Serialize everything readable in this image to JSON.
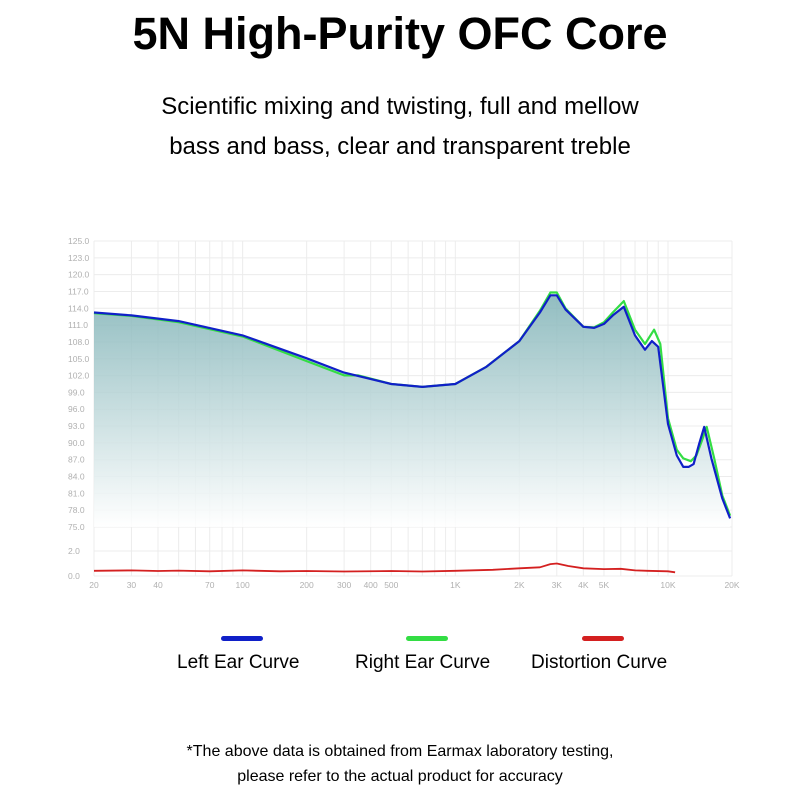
{
  "header": {
    "title": "5N High-Purity OFC Core",
    "subtitle_lines": [
      "Scientific mixing and twisting, full and mellow",
      "bass and bass, clear and transparent treble"
    ]
  },
  "footnote": {
    "lines": [
      "*The above data is obtained from Earmax laboratory testing,",
      "please refer to the actual product for accuracy"
    ]
  },
  "colors": {
    "left": "#1020c8",
    "right": "#33dd44",
    "distortion": "#d42020",
    "fill_top": "#7fb2b6",
    "fill_bottom": "#ffffff",
    "grid": "#ececec",
    "tick_text": "#b0b0b0"
  },
  "chart_data": {
    "type": "line",
    "x_scale": "log",
    "xlim": [
      20,
      20000
    ],
    "ylim_main": [
      75.0,
      125.0
    ],
    "ylim_distortion": [
      0.0,
      2.0
    ],
    "y_ticks_main": [
      "125.0",
      "123.0",
      "120.0",
      "117.0",
      "114.0",
      "111.0",
      "108.0",
      "105.0",
      "102.0",
      "99.0",
      "96.0",
      "93.0",
      "90.0",
      "87.0",
      "84.0",
      "81.0",
      "78.0",
      "75.0"
    ],
    "y_ticks_distortion": [
      "2.0",
      "0.0"
    ],
    "x_ticks": [
      {
        "v": 20,
        "label": "20"
      },
      {
        "v": 30,
        "label": "30"
      },
      {
        "v": 40,
        "label": "40"
      },
      {
        "v": 70,
        "label": "70"
      },
      {
        "v": 100,
        "label": "100"
      },
      {
        "v": 200,
        "label": "200"
      },
      {
        "v": 300,
        "label": "300"
      },
      {
        "v": 400,
        "label": "400"
      },
      {
        "v": 500,
        "label": "500"
      },
      {
        "v": 1000,
        "label": "1K"
      },
      {
        "v": 2000,
        "label": "2K"
      },
      {
        "v": 3000,
        "label": "3K"
      },
      {
        "v": 4000,
        "label": "4K"
      },
      {
        "v": 5000,
        "label": "5K"
      },
      {
        "v": 10000,
        "label": "10K"
      },
      {
        "v": 20000,
        "label": "20K"
      }
    ],
    "series": [
      {
        "name": "Left Ear Curve",
        "points": [
          [
            20,
            112.5
          ],
          [
            30,
            112.0
          ],
          [
            50,
            111.0
          ],
          [
            100,
            108.5
          ],
          [
            200,
            104.5
          ],
          [
            300,
            102.0
          ],
          [
            500,
            100.0
          ],
          [
            700,
            99.5
          ],
          [
            1000,
            100.0
          ],
          [
            1400,
            103.0
          ],
          [
            2000,
            107.5
          ],
          [
            2500,
            112.5
          ],
          [
            2800,
            115.5
          ],
          [
            3000,
            115.5
          ],
          [
            3300,
            113.0
          ],
          [
            4000,
            110.0
          ],
          [
            4500,
            109.8
          ],
          [
            5000,
            110.5
          ],
          [
            5500,
            112.0
          ],
          [
            6200,
            113.5
          ],
          [
            7000,
            108.5
          ],
          [
            7800,
            106.0
          ],
          [
            8400,
            107.5
          ],
          [
            9000,
            106.5
          ],
          [
            10000,
            93.0
          ],
          [
            11000,
            87.5
          ],
          [
            11800,
            85.5
          ],
          [
            12500,
            85.5
          ],
          [
            13200,
            86.0
          ],
          [
            14000,
            89.5
          ],
          [
            14800,
            92.5
          ],
          [
            16000,
            87.0
          ],
          [
            18000,
            80.0
          ],
          [
            19600,
            76.5
          ]
        ]
      },
      {
        "name": "Right Ear Curve",
        "points": [
          [
            20,
            112.4
          ],
          [
            30,
            111.9
          ],
          [
            50,
            110.8
          ],
          [
            100,
            108.3
          ],
          [
            200,
            104.0
          ],
          [
            300,
            101.5
          ],
          [
            350,
            101.5
          ],
          [
            500,
            100.0
          ],
          [
            700,
            99.5
          ],
          [
            1000,
            100.0
          ],
          [
            1400,
            103.0
          ],
          [
            2000,
            107.5
          ],
          [
            2500,
            112.8
          ],
          [
            2800,
            116.0
          ],
          [
            3000,
            116.0
          ],
          [
            3300,
            113.2
          ],
          [
            4000,
            110.0
          ],
          [
            4500,
            109.9
          ],
          [
            5000,
            110.8
          ],
          [
            5500,
            112.5
          ],
          [
            6200,
            114.5
          ],
          [
            7000,
            109.5
          ],
          [
            7800,
            107.0
          ],
          [
            8600,
            109.5
          ],
          [
            9200,
            107.0
          ],
          [
            10000,
            94.0
          ],
          [
            11000,
            88.5
          ],
          [
            11800,
            87.0
          ],
          [
            12800,
            86.5
          ],
          [
            13600,
            87.5
          ],
          [
            14400,
            90.0
          ],
          [
            15200,
            92.5
          ],
          [
            16500,
            87.0
          ],
          [
            18000,
            80.5
          ],
          [
            19600,
            77.0
          ]
        ]
      },
      {
        "name": "Distortion Curve",
        "points": [
          [
            20,
            0.42
          ],
          [
            30,
            0.45
          ],
          [
            40,
            0.4
          ],
          [
            50,
            0.43
          ],
          [
            70,
            0.38
          ],
          [
            100,
            0.45
          ],
          [
            150,
            0.38
          ],
          [
            200,
            0.4
          ],
          [
            300,
            0.36
          ],
          [
            500,
            0.4
          ],
          [
            700,
            0.36
          ],
          [
            1000,
            0.42
          ],
          [
            1500,
            0.5
          ],
          [
            2000,
            0.62
          ],
          [
            2500,
            0.7
          ],
          [
            2800,
            0.95
          ],
          [
            3000,
            1.0
          ],
          [
            3400,
            0.8
          ],
          [
            4000,
            0.62
          ],
          [
            5000,
            0.55
          ],
          [
            6000,
            0.58
          ],
          [
            7000,
            0.45
          ],
          [
            8000,
            0.42
          ],
          [
            10000,
            0.38
          ],
          [
            10800,
            0.3
          ]
        ]
      }
    ]
  },
  "legend": {
    "items": [
      {
        "label": "Left Ear Curve",
        "color": "#1020c8"
      },
      {
        "label": "Right Ear Curve",
        "color": "#33dd44"
      },
      {
        "label": "Distortion Curve",
        "color": "#d42020"
      }
    ]
  }
}
